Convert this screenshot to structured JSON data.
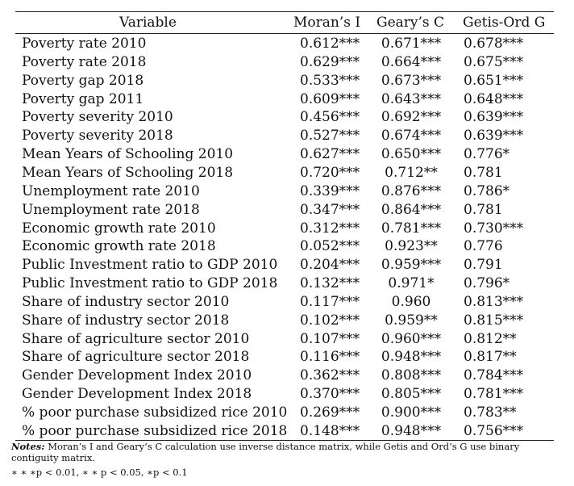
{
  "headers": {
    "variable": "Variable",
    "moran": "Moran’s I",
    "geary": "Geary’s C",
    "getis": "Getis-Ord G"
  },
  "rows": [
    {
      "variable": "Poverty rate 2010",
      "moran": "0.612***",
      "geary": "0.671***",
      "getis": "0.678***"
    },
    {
      "variable": "Poverty rate 2018",
      "moran": "0.629***",
      "geary": "0.664***",
      "getis": "0.675***"
    },
    {
      "variable": "Poverty gap 2018",
      "moran": "0.533***",
      "geary": "0.673***",
      "getis": "0.651***"
    },
    {
      "variable": "Poverty gap 2011",
      "moran": "0.609***",
      "geary": "0.643***",
      "getis": "0.648***"
    },
    {
      "variable": "Poverty severity 2010",
      "moran": "0.456***",
      "geary": "0.692***",
      "getis": "0.639***"
    },
    {
      "variable": "Poverty severity 2018",
      "moran": "0.527***",
      "geary": "0.674***",
      "getis": "0.639***"
    },
    {
      "variable": "Mean Years of Schooling 2010",
      "moran": "0.627***",
      "geary": "0.650***",
      "getis": "0.776*"
    },
    {
      "variable": "Mean Years of Schooling 2018",
      "moran": "0.720***",
      "geary": "0.712**",
      "getis": "0.781"
    },
    {
      "variable": "Unemployment rate 2010",
      "moran": "0.339***",
      "geary": "0.876***",
      "getis": "0.786*"
    },
    {
      "variable": "Unemployment rate 2018",
      "moran": "0.347***",
      "geary": "0.864***",
      "getis": "0.781"
    },
    {
      "variable": "Economic growth rate 2010",
      "moran": "0.312***",
      "geary": "0.781***",
      "getis": "0.730***"
    },
    {
      "variable": "Economic growth rate 2018",
      "moran": "0.052***",
      "geary": "0.923**",
      "getis": "0.776"
    },
    {
      "variable": "Public Investment ratio to GDP 2010",
      "moran": "0.204***",
      "geary": "0.959***",
      "getis": "0.791"
    },
    {
      "variable": "Public Investment ratio to GDP 2018",
      "moran": "0.132***",
      "geary": "0.971*",
      "getis": "0.796*"
    },
    {
      "variable": "Share of industry sector 2010",
      "moran": "0.117***",
      "geary": "0.960",
      "getis": "0.813***"
    },
    {
      "variable": "Share of industry sector 2018",
      "moran": "0.102***",
      "geary": "0.959**",
      "getis": "0.815***"
    },
    {
      "variable": "Share of agriculture sector 2010",
      "moran": "0.107***",
      "geary": "0.960***",
      "getis": "0.812**"
    },
    {
      "variable": "Share of agriculture sector 2018",
      "moran": "0.116***",
      "geary": "0.948***",
      "getis": "0.817**"
    },
    {
      "variable": "Gender Development Index 2010",
      "moran": "0.362***",
      "geary": "0.808***",
      "getis": "0.784***"
    },
    {
      "variable": "Gender Development Index 2018",
      "moran": "0.370***",
      "geary": "0.805***",
      "getis": "0.781***"
    },
    {
      "variable": "% poor purchase subsidized rice 2010",
      "moran": "0.269***",
      "geary": "0.900***",
      "getis": "0.783**"
    },
    {
      "variable": "% poor purchase subsidized rice 2018",
      "moran": "0.148***",
      "geary": "0.948***",
      "getis": "0.756***"
    }
  ],
  "notes": {
    "label": "Notes:",
    "text": "Moran’s I and Geary’s C calculation use inverse distance matrix, while Getis and Ord’s G use binary contiguity matrix.",
    "significance": "∗ ∗ ∗p < 0.01, ∗ ∗ p < 0.05, ∗p < 0.1"
  }
}
